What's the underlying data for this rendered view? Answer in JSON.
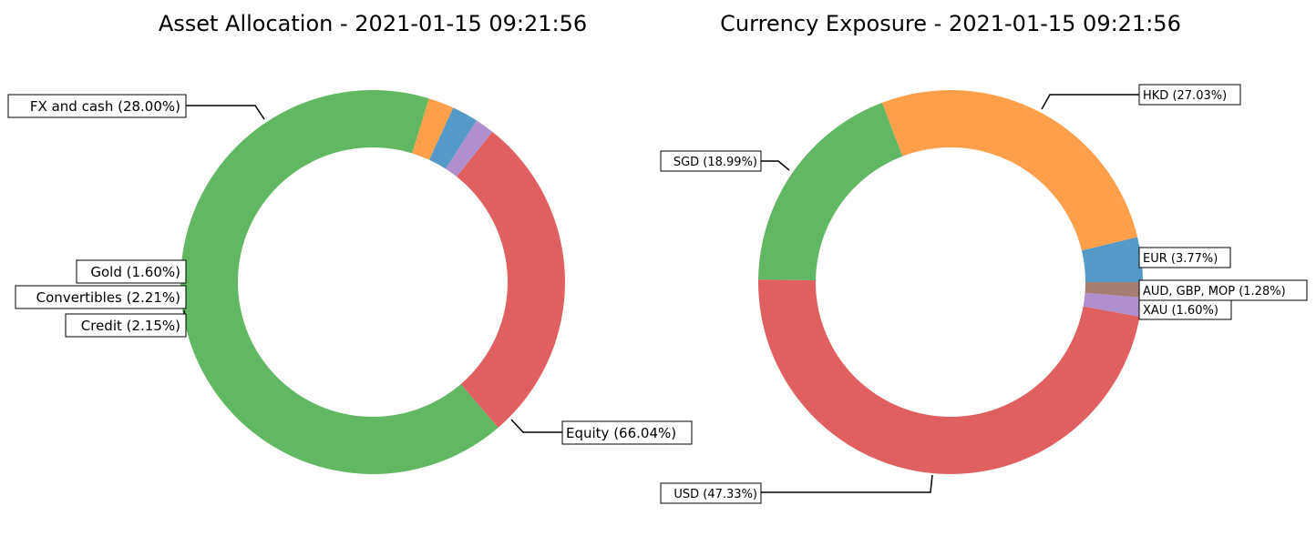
{
  "chart_data": [
    {
      "type": "pie",
      "style": "donut",
      "title": "Asset Allocation - 2021-01-15 09:21:56",
      "slices": [
        {
          "label": "Equity (66.04%)",
          "value": 66.04,
          "color": "#62b862"
        },
        {
          "label": "FX and cash (28.00%)",
          "value": 28.0,
          "color": "#e05f5f"
        },
        {
          "label": "Gold (1.60%)",
          "value": 1.6,
          "color": "#b08fcf"
        },
        {
          "label": "Convertibles (2.21%)",
          "value": 2.21,
          "color": "#5499c7"
        },
        {
          "label": "Credit (2.15%)",
          "value": 2.15,
          "color": "#ff9f4a"
        }
      ]
    },
    {
      "type": "pie",
      "style": "donut",
      "title": "Currency Exposure - 2021-01-15 09:21:56",
      "slices": [
        {
          "label": "EUR (3.77%)",
          "value": 3.77,
          "color": "#5499c7"
        },
        {
          "label": "HKD (27.03%)",
          "value": 27.03,
          "color": "#ff9f4a"
        },
        {
          "label": "SGD (18.99%)",
          "value": 18.99,
          "color": "#62b862"
        },
        {
          "label": "USD (47.33%)",
          "value": 47.33,
          "color": "#e05f5f"
        },
        {
          "label": "XAU (1.60%)",
          "value": 1.6,
          "color": "#b08fcf"
        },
        {
          "label": "AUD, GBP, MOP (1.28%)",
          "value": 1.28,
          "color": "#a67c73"
        }
      ]
    }
  ]
}
